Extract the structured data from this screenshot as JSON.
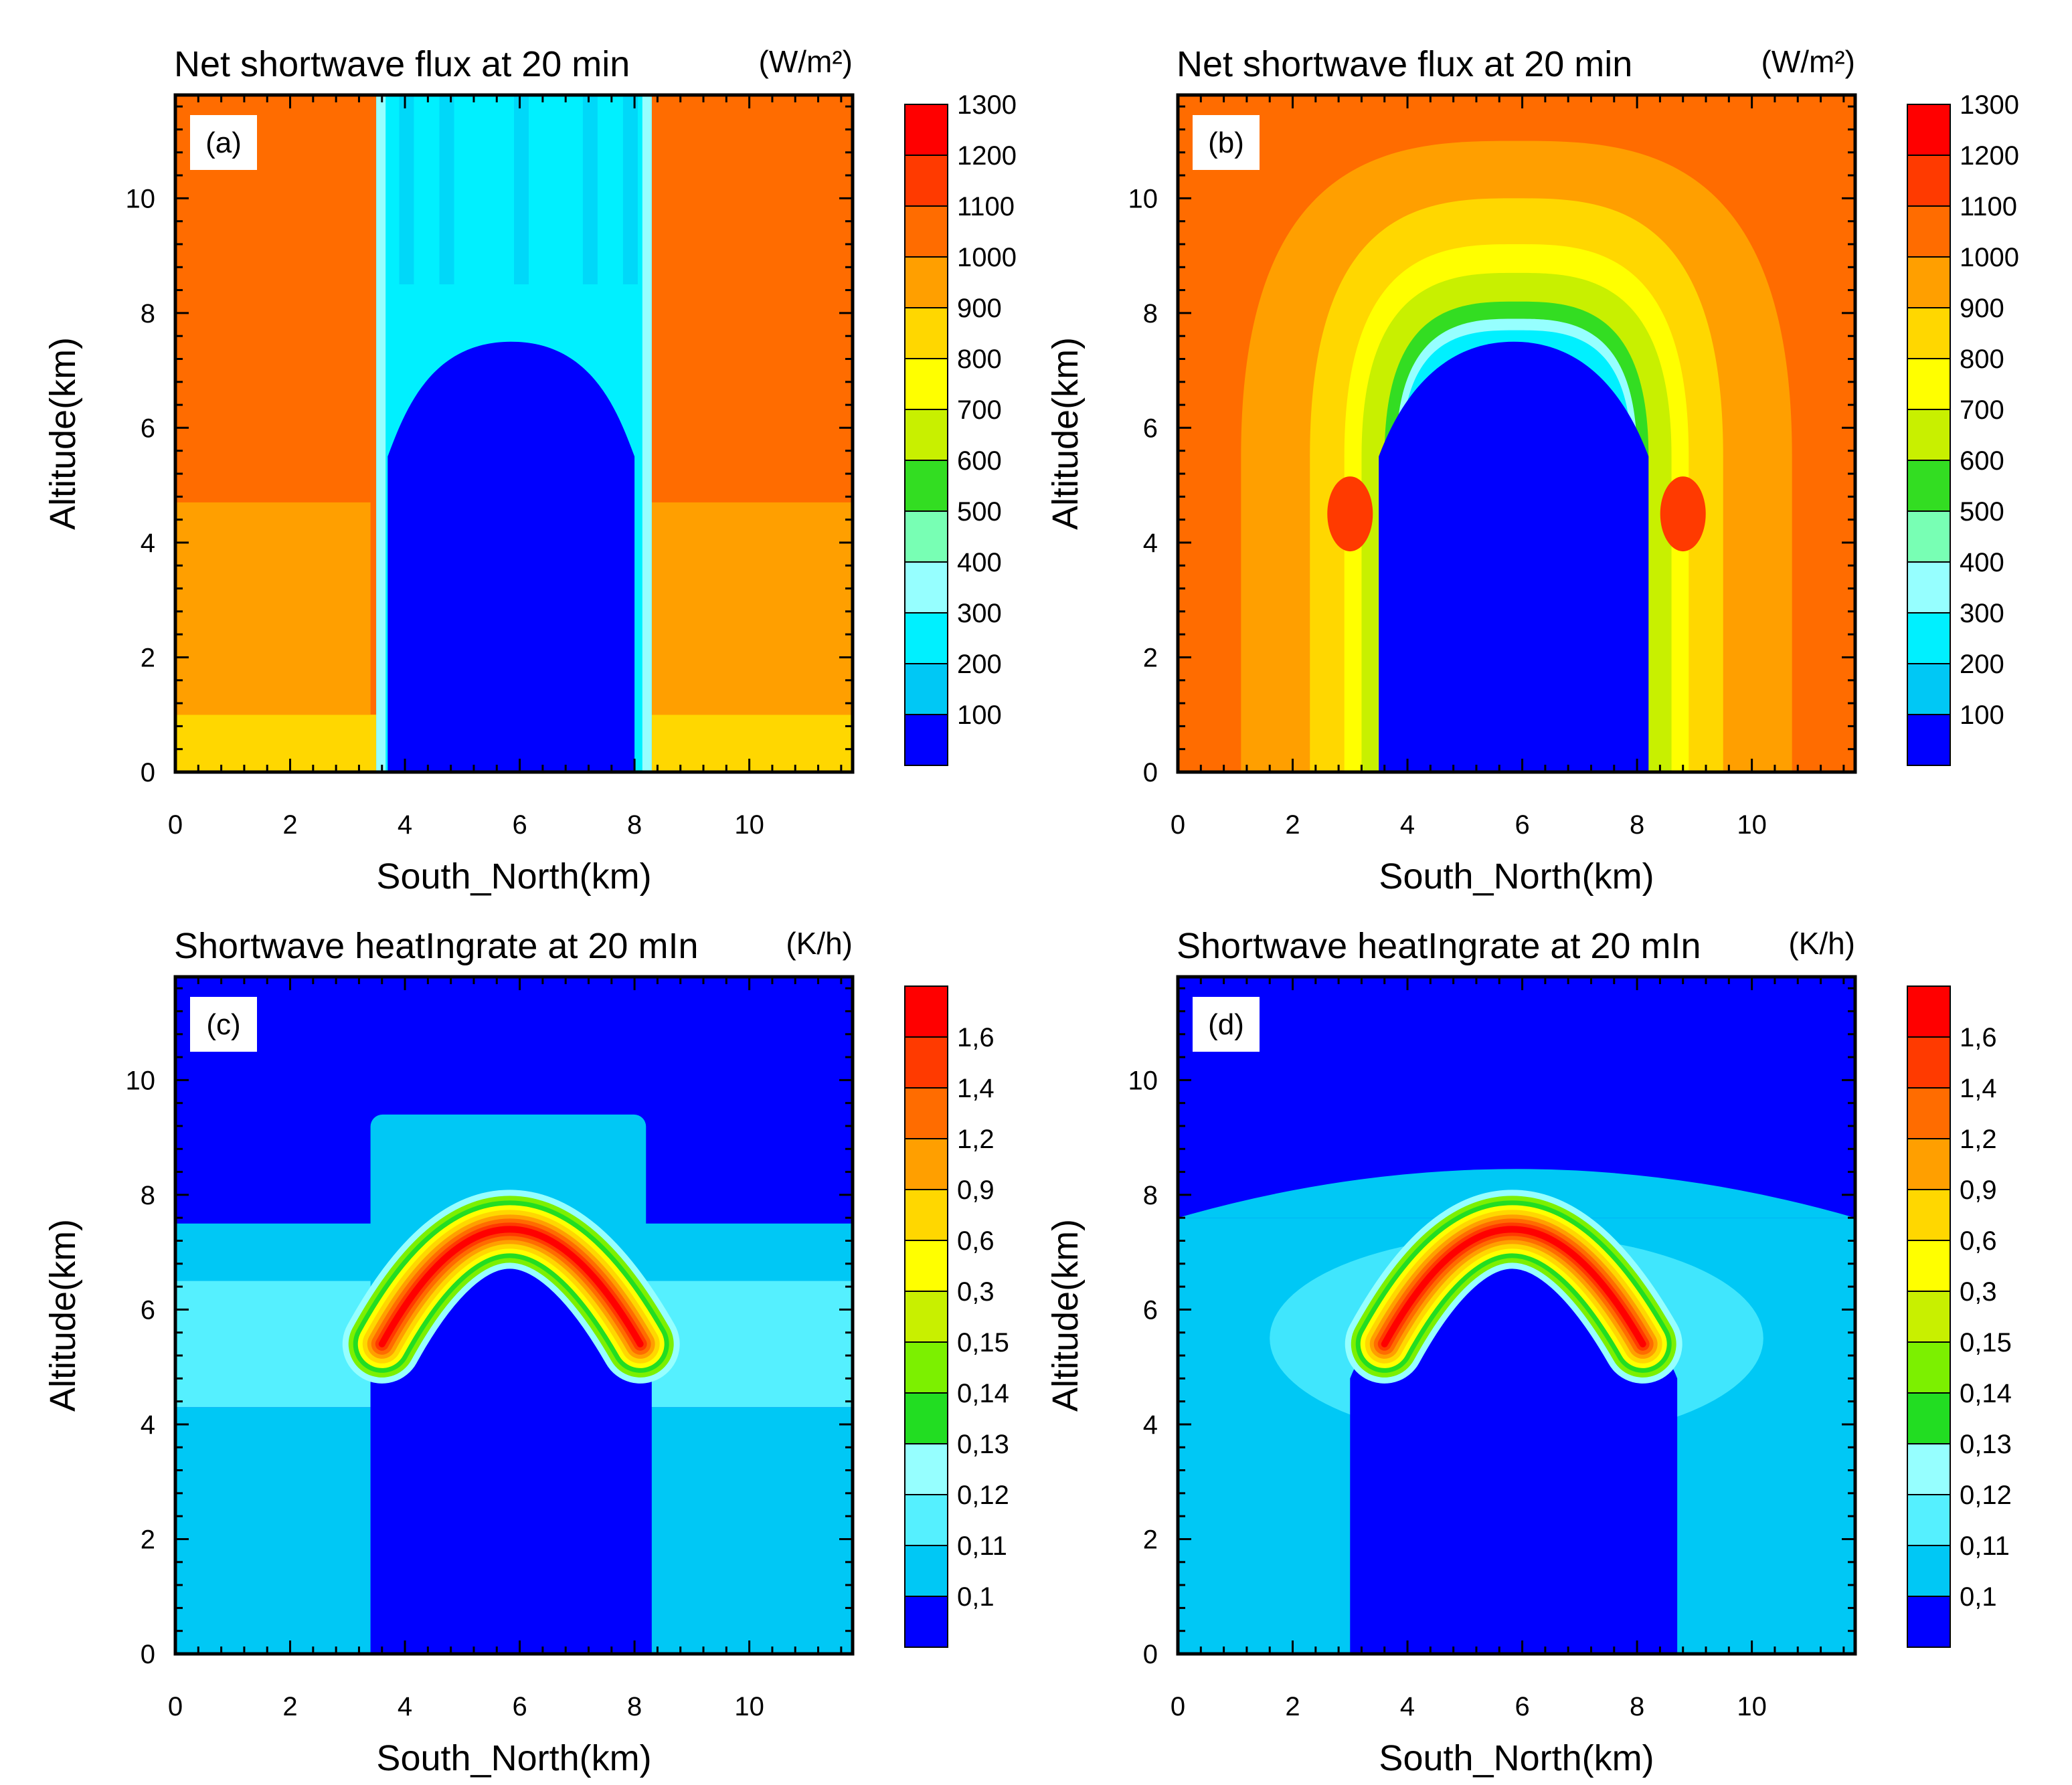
{
  "chart_data": [
    {
      "type": "heatmap",
      "panel_label": "(a)",
      "title": "Net shortwave flux at 20 min",
      "units": "(W/m²)",
      "xlabel": "South_North(km)",
      "ylabel": "Altitude(km)",
      "xlim": [
        0,
        11.8
      ],
      "ylim": [
        0,
        11.8
      ],
      "x_ticks": [
        "0",
        "2",
        "4",
        "6",
        "8",
        "10"
      ],
      "y_ticks": [
        "0",
        "2",
        "4",
        "6",
        "8",
        "10"
      ],
      "levels": [
        "100",
        "200",
        "300",
        "400",
        "500",
        "600",
        "700",
        "800",
        "900",
        "1000",
        "1100",
        "1200",
        "1300"
      ],
      "colors": [
        "#0000ff",
        "#00c8f5",
        "#00f0ff",
        "#96ffff",
        "#78ffb4",
        "#33dd22",
        "#c8f000",
        "#ffff00",
        "#ffd700",
        "#ff9f00",
        "#ff6c00",
        "#ff3a00",
        "#ff0000"
      ],
      "field": {
        "background": "#ff6c00",
        "bands": [
          {
            "y": [
              0,
              1.0
            ],
            "x": [
              0,
              3.5
            ],
            "level": "#ffd700"
          },
          {
            "y": [
              0,
              1.0
            ],
            "x": [
              8.3,
              11.8
            ],
            "level": "#ffd700"
          },
          {
            "y": [
              1.0,
              4.7
            ],
            "x": [
              0,
              3.4
            ],
            "level": "#ff9f00"
          },
          {
            "y": [
              1.0,
              4.7
            ],
            "x": [
              8.3,
              11.8
            ],
            "level": "#ff9f00"
          }
        ],
        "column": {
          "x": [
            3.5,
            8.3
          ],
          "y": [
            0,
            11.8
          ],
          "level": "#00f0ff"
        },
        "cloud_top_km": 7.5,
        "cloud_edges_km": [
          3.7,
          8.0
        ],
        "cloud_shoulder_km": 5.5,
        "cloud_level": "#0000ff"
      }
    },
    {
      "type": "heatmap",
      "panel_label": "(b)",
      "title": "Net shortwave flux at 20 min",
      "units": "(W/m²)",
      "xlabel": "South_North(km)",
      "ylabel": "Altitude(km)",
      "xlim": [
        0,
        11.8
      ],
      "ylim": [
        0,
        11.8
      ],
      "x_ticks": [
        "0",
        "2",
        "4",
        "6",
        "8",
        "10"
      ],
      "y_ticks": [
        "0",
        "2",
        "4",
        "6",
        "8",
        "10"
      ],
      "levels": [
        "100",
        "200",
        "300",
        "400",
        "500",
        "600",
        "700",
        "800",
        "900",
        "1000",
        "1100",
        "1200",
        "1300"
      ],
      "colors": [
        "#0000ff",
        "#00c8f5",
        "#00f0ff",
        "#96ffff",
        "#78ffb4",
        "#33dd22",
        "#c8f000",
        "#ffff00",
        "#ffd700",
        "#ff9f00",
        "#ff6c00",
        "#ff3a00",
        "#ff0000"
      ],
      "field": {
        "background": "#ff6c00",
        "dome_levels": [
          "#ff9f00",
          "#ffd700",
          "#ffff00",
          "#c8f000",
          "#33dd22",
          "#96ffff",
          "#00f0ff"
        ],
        "dome_top_km": [
          11.0,
          10.0,
          9.2,
          8.7,
          8.2,
          7.9,
          7.7
        ],
        "dome_half_width_km": [
          4.8,
          3.6,
          3.0,
          2.7,
          2.3,
          2.1,
          2.0
        ],
        "hot_spots_x_km": [
          3.0,
          8.8
        ],
        "hot_spot_y_km": 4.5,
        "cloud_top_km": 7.5,
        "cloud_edges_km": [
          3.5,
          8.2
        ],
        "cloud_shoulder_km": 5.5,
        "cloud_level": "#0000ff"
      }
    },
    {
      "type": "heatmap",
      "panel_label": "(c)",
      "title": "Shortwave heatIngrate at 20 mIn",
      "units": "(K/h)",
      "xlabel": "South_North(km)",
      "ylabel": "Altitude(km)",
      "xlim": [
        0,
        11.8
      ],
      "ylim": [
        0,
        11.8
      ],
      "x_ticks": [
        "0",
        "2",
        "4",
        "6",
        "8",
        "10"
      ],
      "y_ticks": [
        "0",
        "2",
        "4",
        "6",
        "8",
        "10"
      ],
      "levels": [
        "0.1",
        "0.11",
        "0.12",
        "0.13",
        "0.14",
        "0.15",
        "0.3",
        "0.6",
        "0.9",
        "1.2",
        "1.4",
        "1.6"
      ],
      "colors": [
        "#0000ff",
        "#00c8f5",
        "#55f0ff",
        "#96ffff",
        "#22dd22",
        "#7cf000",
        "#c8f000",
        "#ffff00",
        "#ffd700",
        "#ff9f00",
        "#ff6c00",
        "#ff3a00",
        "#ff0000"
      ],
      "field": {
        "background": "#0000ff",
        "layers": [
          {
            "y": [
              0,
              4.3
            ],
            "level": "#00c8f5"
          },
          {
            "y": [
              4.3,
              6.5
            ],
            "level": "#55f0ff"
          },
          {
            "y": [
              6.5,
              7.5
            ],
            "level": "#00c8f5"
          }
        ],
        "column": {
          "x": [
            3.4,
            8.2
          ],
          "top_km": 9.4,
          "level": "#00c8f5"
        },
        "cloud_top_km": 6.8,
        "cloud_edges_km": [
          3.4,
          8.3
        ],
        "cloud_shoulder_km": 4.9,
        "cloud_level": "#0000ff",
        "ridge_peak": [
          5.8,
          7.4
        ],
        "ridge_ends": [
          [
            3.6,
            5.4
          ],
          [
            8.1,
            5.4
          ]
        ],
        "ridge_levels": [
          "#96ffff",
          "#7cf000",
          "#22dd22",
          "#ffff00",
          "#ffd700",
          "#ff9f00",
          "#ff6c00",
          "#ff3a00",
          "#ff0000"
        ]
      }
    },
    {
      "type": "heatmap",
      "panel_label": "(d)",
      "title": "Shortwave heatIngrate at 20 mIn",
      "units": "(K/h)",
      "xlabel": "South_North(km)",
      "ylabel": "Altitude(km)",
      "xlim": [
        0,
        11.8
      ],
      "ylim": [
        0,
        11.8
      ],
      "x_ticks": [
        "0",
        "2",
        "4",
        "6",
        "8",
        "10"
      ],
      "y_ticks": [
        "0",
        "2",
        "4",
        "6",
        "8",
        "10"
      ],
      "levels": [
        "0.1",
        "0.11",
        "0.12",
        "0.13",
        "0.14",
        "0.15",
        "0.3",
        "0.6",
        "0.9",
        "1.2",
        "1.4",
        "1.6"
      ],
      "colors": [
        "#0000ff",
        "#00c8f5",
        "#55f0ff",
        "#96ffff",
        "#22dd22",
        "#7cf000",
        "#c8f000",
        "#ffff00",
        "#ffd700",
        "#ff9f00",
        "#ff6c00",
        "#ff3a00",
        "#ff0000"
      ],
      "field": {
        "background": "#0000ff",
        "layers": [
          {
            "y": [
              0,
              7.6
            ],
            "level": "#00c8f5"
          }
        ],
        "dome_top_km": 8.4,
        "halo": {
          "center": [
            5.9,
            5.5
          ],
          "radius_km": [
            4.3,
            1.8
          ],
          "level": "#55f0ff"
        },
        "cloud_top_km": 6.8,
        "cloud_edges_km": [
          3.0,
          8.7
        ],
        "cloud_shoulder_km": 4.8,
        "cloud_level": "#0000ff",
        "ridge_peak": [
          5.8,
          7.4
        ],
        "ridge_ends": [
          [
            3.6,
            5.4
          ],
          [
            8.1,
            5.4
          ]
        ],
        "ridge_levels": [
          "#96ffff",
          "#7cf000",
          "#22dd22",
          "#ffff00",
          "#ffd700",
          "#ff9f00",
          "#ff6c00",
          "#ff3a00",
          "#ff0000"
        ]
      }
    }
  ]
}
